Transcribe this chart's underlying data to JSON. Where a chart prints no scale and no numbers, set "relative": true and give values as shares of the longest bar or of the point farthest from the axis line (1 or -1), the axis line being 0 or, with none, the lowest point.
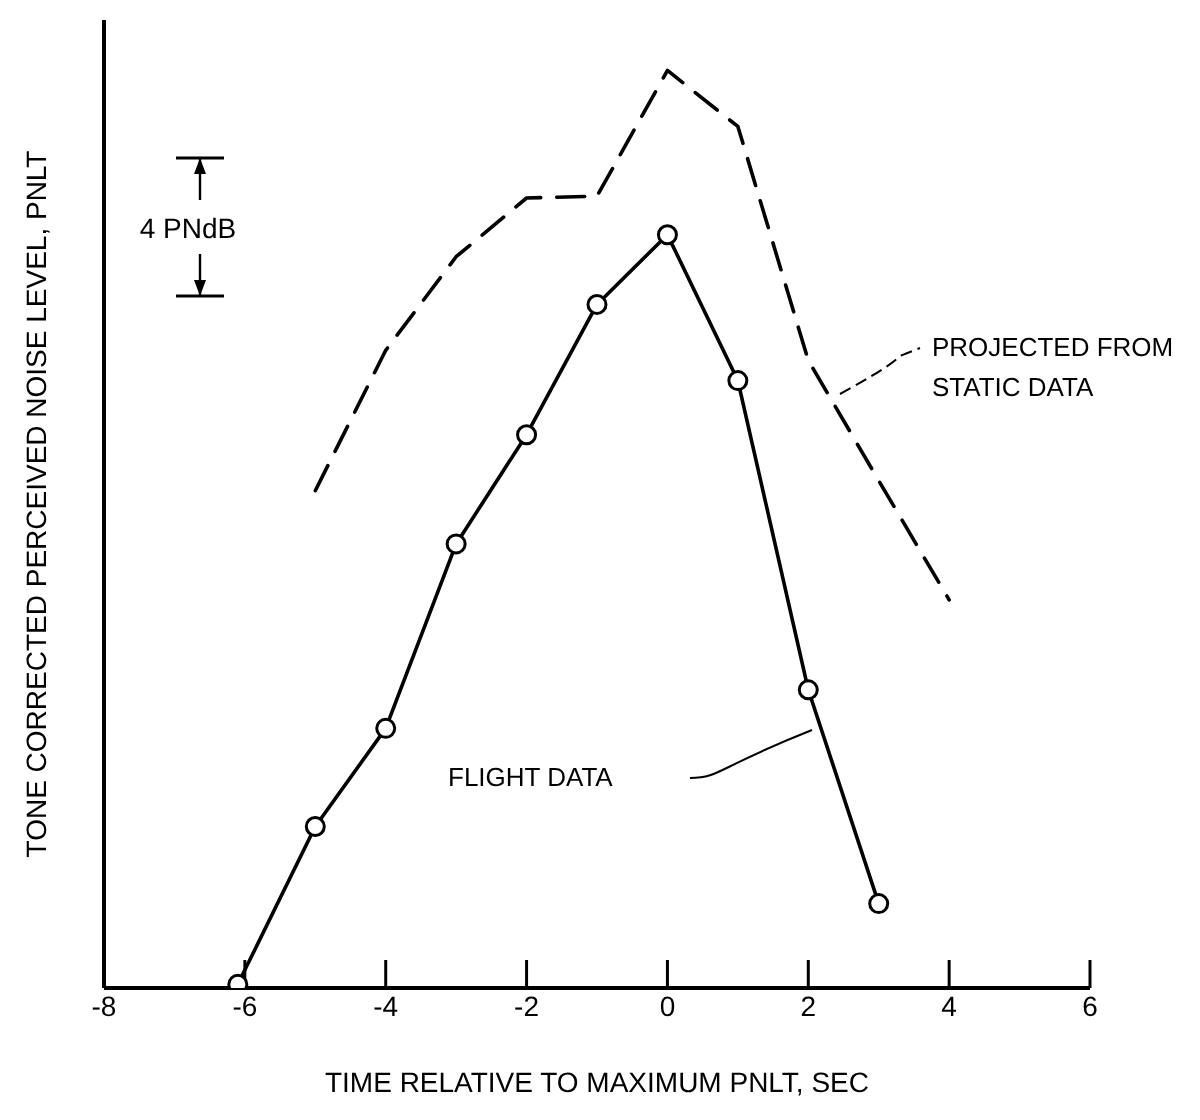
{
  "chart_data": {
    "type": "line",
    "xlabel": "TIME RELATIVE TO MAXIMUM PNLT, SEC",
    "ylabel": "TONE CORRECTED PERCEIVED NOISE LEVEL, PNLT",
    "relative": true,
    "xlim": [
      -8,
      6
    ],
    "xticks": [
      -8,
      -6,
      -4,
      -2,
      0,
      2,
      4,
      6
    ],
    "annotations": [
      "4 PNdB"
    ],
    "series": [
      {
        "name": "PROJECTED FROM STATIC DATA",
        "color": "#000000",
        "marker": "none",
        "line_style": "dashed",
        "x": [
          -5,
          -4,
          -3,
          -2,
          -1,
          0,
          1,
          2,
          3,
          4
        ],
        "values": [
          0.542,
          0.695,
          0.797,
          0.861,
          0.863,
          1,
          0.939,
          0.684,
          0.553,
          0.423
        ]
      },
      {
        "name": "FLIGHT DATA",
        "color": "#000000",
        "marker": "circle",
        "line_style": "solid",
        "x": [
          -6.1,
          -5,
          -4,
          -3,
          -2,
          -1,
          0,
          1,
          2,
          3
        ],
        "values": [
          0.004,
          0.176,
          0.283,
          0.484,
          0.603,
          0.745,
          0.821,
          0.662,
          0.325,
          0.092
        ]
      }
    ]
  }
}
